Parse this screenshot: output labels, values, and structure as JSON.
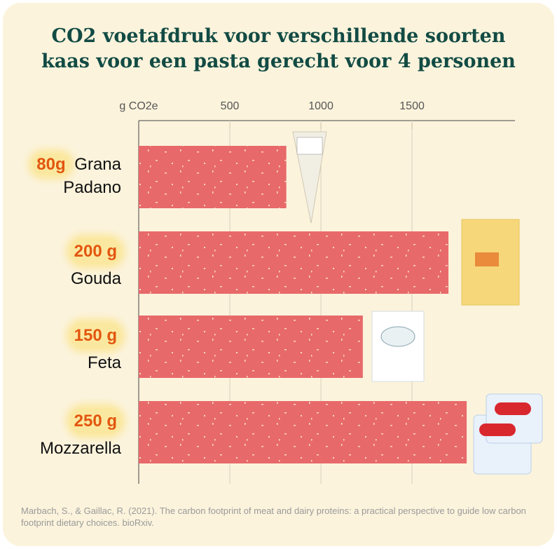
{
  "chart_data": {
    "type": "bar",
    "orientation": "horizontal",
    "title_lines": [
      "CO2 voetafdruk voor verschillende soorten",
      "kaas voor een pasta gerecht voor 4 personen"
    ],
    "x_axis_label": "g CO2e",
    "categories": [
      "Grana Padano",
      "Gouda",
      "Feta",
      "Mozzarella"
    ],
    "amounts": [
      "80g",
      "200 g",
      "150 g",
      "250 g"
    ],
    "values": [
      810,
      1700,
      1230,
      1800
    ],
    "color": "#e8696a",
    "xlim": [
      0,
      2065
    ],
    "xticks": [
      500,
      1000,
      1500
    ],
    "grid": true,
    "source": "Marbach, S., & Gaillac, R. (2021). The carbon footprint of meat and dairy proteins: a practical perspective to guide low carbon footprint dietary choices. bioRxiv."
  }
}
